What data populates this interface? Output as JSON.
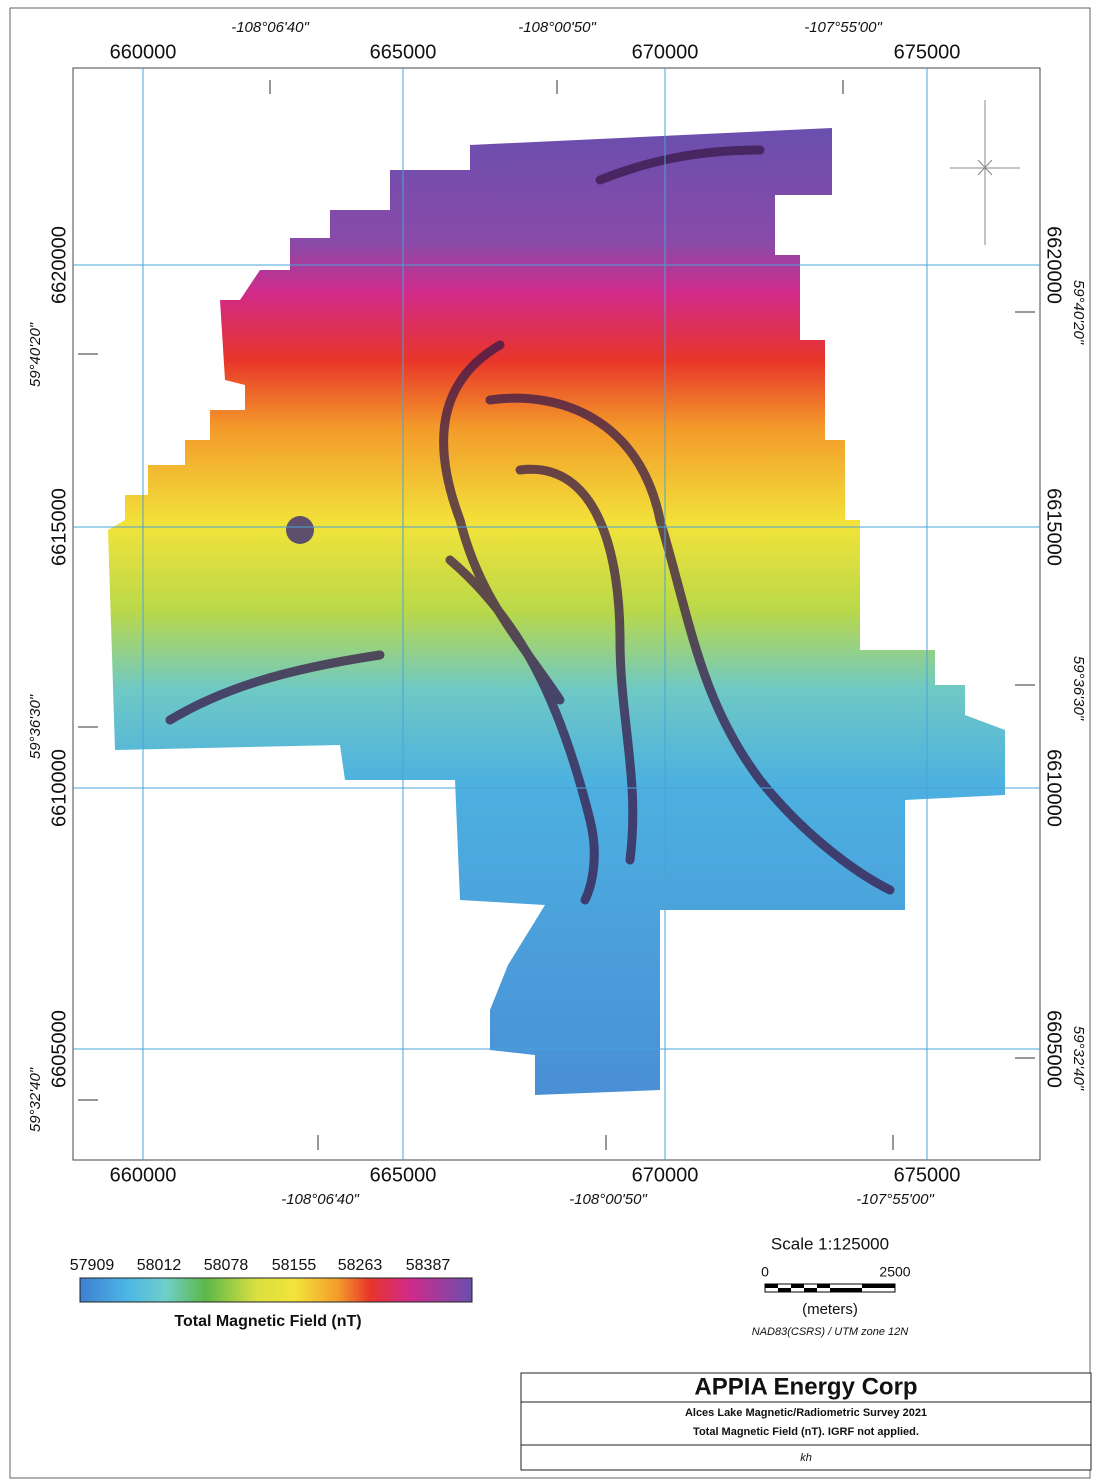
{
  "map": {
    "top_longitudes": [
      "-108°06'40\"",
      "-108°00'50\"",
      "-107°55'00\""
    ],
    "top_eastings": [
      "660000",
      "665000",
      "670000",
      "675000"
    ],
    "bottom_eastings": [
      "660000",
      "665000",
      "670000",
      "675000"
    ],
    "bottom_longitudes": [
      "-108°06'40\"",
      "-108°00'50\"",
      "-107°55'00\""
    ],
    "left_northings": [
      "6620000",
      "6615000",
      "6610000",
      "6605000"
    ],
    "left_latitudes": [
      "59°40'20\"",
      "59°36'30\"",
      "59°32'40\""
    ],
    "right_northings": [
      "6620000",
      "6615000",
      "6610000",
      "6605000"
    ],
    "right_latitudes": [
      "59°40'20\"",
      "59°36'30\"",
      "59°32'40\""
    ]
  },
  "legend": {
    "values": [
      "57909",
      "58012",
      "58078",
      "58155",
      "58263",
      "58387"
    ],
    "title": "Total Magnetic Field (nT)"
  },
  "scale": {
    "title": "Scale 1:125000",
    "start": "0",
    "end": "2500",
    "unit": "(meters)",
    "projection": "NAD83(CSRS) / UTM zone 12N"
  },
  "title_block": {
    "company": "APPIA Energy Corp",
    "survey": "Alces Lake Magnetic/Radiometric Survey 2021",
    "description": "Total Magnetic Field (nT).  IGRF not applied.",
    "initials": "kh"
  }
}
